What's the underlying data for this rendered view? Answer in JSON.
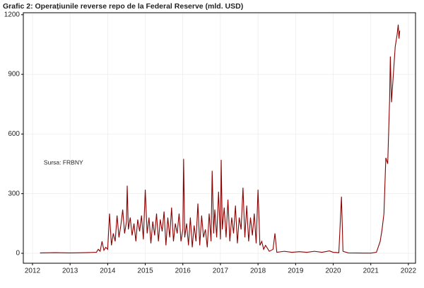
{
  "chart_data": {
    "type": "line",
    "title": "Grafic 2: Operațiunile reverse repo de la Federal Reserve (mld. USD)",
    "annotation": {
      "text": "Sursa: FRBNY",
      "x": 2012.3,
      "y": 455
    },
    "x": [
      2012.2,
      2012.6,
      2013.0,
      2013.4,
      2013.7,
      2013.75,
      2013.8,
      2013.85,
      2013.9,
      2013.95,
      2014.0,
      2014.05,
      2014.1,
      2014.15,
      2014.2,
      2014.25,
      2014.3,
      2014.35,
      2014.4,
      2014.45,
      2014.5,
      2014.52,
      2014.55,
      2014.6,
      2014.65,
      2014.7,
      2014.75,
      2014.8,
      2014.85,
      2014.9,
      2014.95,
      2015.0,
      2015.05,
      2015.1,
      2015.15,
      2015.2,
      2015.25,
      2015.3,
      2015.35,
      2015.4,
      2015.45,
      2015.5,
      2015.55,
      2015.6,
      2015.65,
      2015.7,
      2015.75,
      2015.8,
      2015.85,
      2015.9,
      2015.95,
      2016.0,
      2016.02,
      2016.05,
      2016.1,
      2016.15,
      2016.2,
      2016.25,
      2016.3,
      2016.35,
      2016.4,
      2016.45,
      2016.5,
      2016.55,
      2016.6,
      2016.65,
      2016.7,
      2016.75,
      2016.78,
      2016.82,
      2016.85,
      2016.9,
      2016.95,
      2017.0,
      2017.02,
      2017.05,
      2017.1,
      2017.15,
      2017.2,
      2017.25,
      2017.3,
      2017.35,
      2017.4,
      2017.45,
      2017.5,
      2017.55,
      2017.6,
      2017.65,
      2017.7,
      2017.75,
      2017.8,
      2017.85,
      2017.9,
      2017.95,
      2018.0,
      2018.05,
      2018.1,
      2018.15,
      2018.2,
      2018.3,
      2018.4,
      2018.45,
      2018.5,
      2018.7,
      2018.9,
      2019.1,
      2019.3,
      2019.5,
      2019.7,
      2019.9,
      2020.0,
      2020.15,
      2020.22,
      2020.26,
      2020.4,
      2020.8,
      2021.0,
      2021.15,
      2021.25,
      2021.3,
      2021.35,
      2021.4,
      2021.45,
      2021.5,
      2021.52,
      2021.55,
      2021.6,
      2021.65,
      2021.7,
      2021.73,
      2021.75,
      2021.77
    ],
    "series": [
      {
        "color": "#8b0000",
        "values": [
          2,
          3,
          2,
          3,
          5,
          20,
          10,
          60,
          15,
          30,
          20,
          200,
          40,
          100,
          60,
          190,
          80,
          140,
          220,
          100,
          160,
          340,
          120,
          180,
          90,
          150,
          60,
          170,
          110,
          190,
          70,
          320,
          100,
          180,
          50,
          160,
          90,
          200,
          60,
          170,
          110,
          210,
          40,
          180,
          80,
          230,
          60,
          150,
          100,
          200,
          60,
          120,
          475,
          80,
          150,
          40,
          180,
          30,
          140,
          60,
          250,
          40,
          190,
          80,
          120,
          30,
          200,
          60,
          415,
          100,
          220,
          80,
          310,
          70,
          470,
          120,
          230,
          80,
          270,
          60,
          180,
          100,
          240,
          50,
          180,
          120,
          330,
          80,
          240,
          60,
          180,
          90,
          200,
          50,
          320,
          40,
          60,
          20,
          40,
          10,
          20,
          100,
          5,
          10,
          5,
          8,
          5,
          10,
          5,
          12,
          5,
          3,
          285,
          10,
          2,
          1,
          1,
          5,
          60,
          120,
          200,
          480,
          450,
          770,
          990,
          760,
          900,
          1040,
          1100,
          1150,
          1080,
          1120
        ]
      }
    ],
    "xlim": [
      2011.756,
      2022.19
    ],
    "xticks": [
      2012,
      2013,
      2014,
      2015,
      2016,
      2017,
      2018,
      2019,
      2020,
      2021,
      2022
    ],
    "ylim": [
      -50,
      1210
    ],
    "yticks": [
      0,
      300,
      600,
      900,
      1200
    ],
    "grid": true
  }
}
